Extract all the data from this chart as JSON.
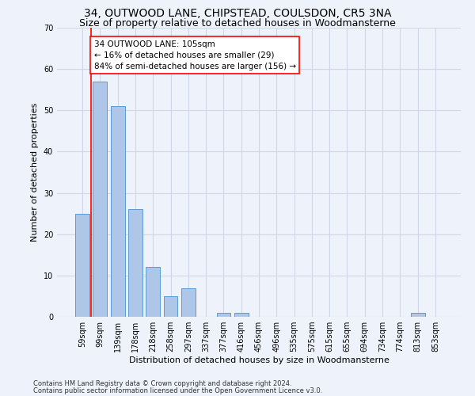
{
  "title": "34, OUTWOOD LANE, CHIPSTEAD, COULSDON, CR5 3NA",
  "subtitle": "Size of property relative to detached houses in Woodmansterne",
  "xlabel": "Distribution of detached houses by size in Woodmansterne",
  "ylabel": "Number of detached properties",
  "categories": [
    "59sqm",
    "99sqm",
    "139sqm",
    "178sqm",
    "218sqm",
    "258sqm",
    "297sqm",
    "337sqm",
    "377sqm",
    "416sqm",
    "456sqm",
    "496sqm",
    "535sqm",
    "575sqm",
    "615sqm",
    "655sqm",
    "694sqm",
    "734sqm",
    "774sqm",
    "813sqm",
    "853sqm"
  ],
  "values": [
    25,
    57,
    51,
    26,
    12,
    5,
    7,
    0,
    1,
    1,
    0,
    0,
    0,
    0,
    0,
    0,
    0,
    0,
    0,
    1,
    0
  ],
  "bar_color": "#aec6e8",
  "bar_edge_color": "#5b9bd5",
  "grid_color": "#d0d8e8",
  "background_color": "#eef2fb",
  "vline_x": 1.0,
  "vline_color": "red",
  "annotation_text": "34 OUTWOOD LANE: 105sqm\n← 16% of detached houses are smaller (29)\n84% of semi-detached houses are larger (156) →",
  "annotation_box_color": "white",
  "annotation_box_edge": "red",
  "ylim": [
    0,
    70
  ],
  "yticks": [
    0,
    10,
    20,
    30,
    40,
    50,
    60,
    70
  ],
  "footnote1": "Contains HM Land Registry data © Crown copyright and database right 2024.",
  "footnote2": "Contains public sector information licensed under the Open Government Licence v3.0.",
  "title_fontsize": 10,
  "subtitle_fontsize": 9,
  "axis_fontsize": 8,
  "tick_fontsize": 7,
  "annot_fontsize": 7.5,
  "footnote_fontsize": 6
}
